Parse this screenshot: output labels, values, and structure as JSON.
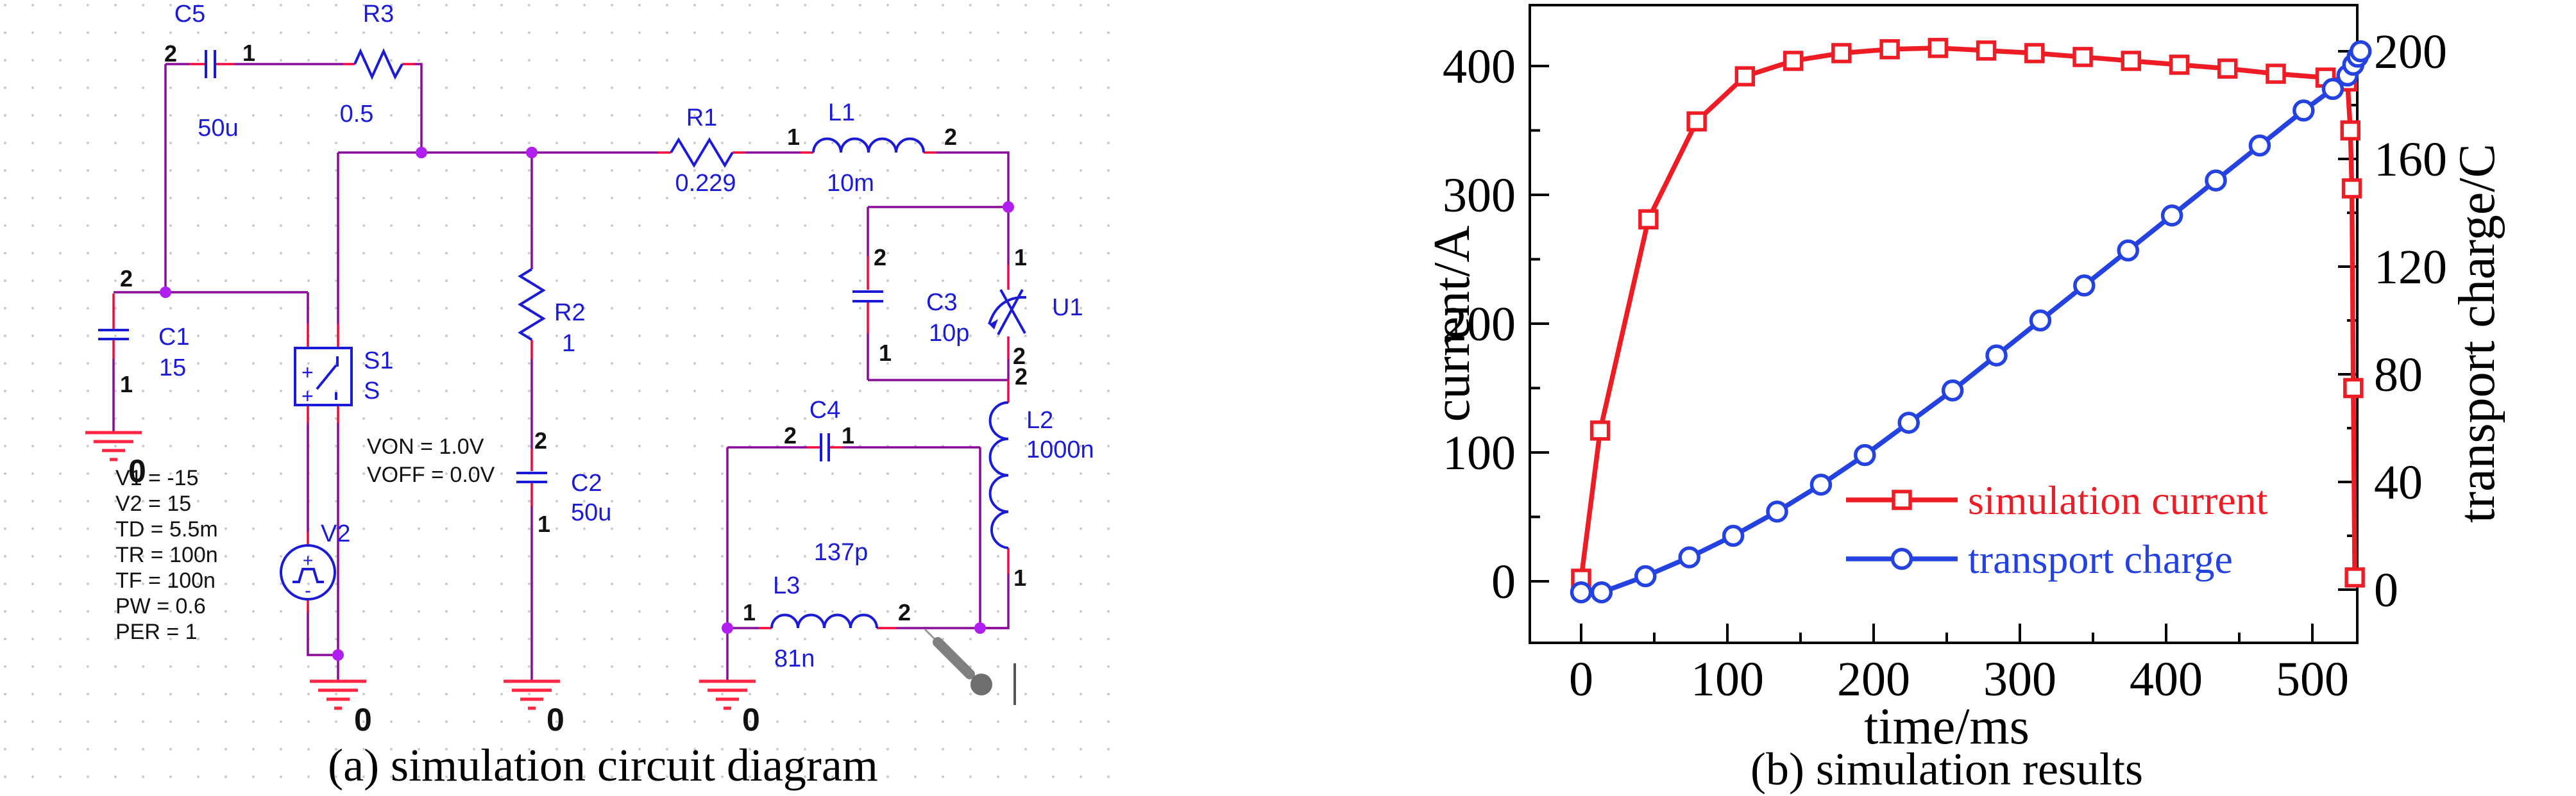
{
  "figure": {
    "caption_a": "(a) simulation circuit diagram",
    "caption_b": "(b) simulation results"
  },
  "circuit": {
    "components": {
      "c5": {
        "name": "C5",
        "value": "50u",
        "pin_left": "2",
        "pin_right": "1"
      },
      "r3": {
        "name": "R3",
        "value": "0.5"
      },
      "c1": {
        "name": "C1",
        "value": "15",
        "pin_top": "2",
        "pin_bottom": "1"
      },
      "s1": {
        "name": "S1",
        "model": "S",
        "von": "VON = 1.0V",
        "voff": "VOFF = 0.0V"
      },
      "v2": {
        "name": "V2",
        "plus": "+",
        "minus": "-",
        "params": [
          "V1 = -15",
          "V2 = 15",
          "TD = 5.5m",
          "TR = 100n",
          "TF = 100n",
          "PW = 0.6",
          "PER = 1"
        ]
      },
      "r2": {
        "name": "R2",
        "value": "1"
      },
      "c2": {
        "name": "C2",
        "value": "50u",
        "pin_top": "2",
        "pin_bottom": "1"
      },
      "r1": {
        "name": "R1",
        "value": "0.229"
      },
      "l1": {
        "name": "L1",
        "value": "10m",
        "pin_left": "1",
        "pin_right": "2"
      },
      "c3": {
        "name": "C3",
        "value": "10p",
        "pin_top": "2",
        "pin_bottom": "1"
      },
      "u1": {
        "name": "U1",
        "pin_top": "1",
        "pin_bottom": "2"
      },
      "l2": {
        "name": "L2",
        "value": "1000n",
        "pin_top": "2",
        "pin_bottom": "1"
      },
      "c4": {
        "name": "C4",
        "value": "137p",
        "pin_left": "2",
        "pin_right": "1"
      },
      "l3": {
        "name": "L3",
        "value": "81n",
        "pin_left": "1",
        "pin_right": "2"
      }
    },
    "grounds": [
      "0",
      "0",
      "0",
      "0"
    ]
  },
  "chart_data": {
    "type": "line",
    "xlabel": "time/ms",
    "ylabel_left": "current/A",
    "ylabel_right": "transport charge/C",
    "x_ticks": [
      0,
      100,
      200,
      300,
      400,
      500
    ],
    "left_ticks": [
      0,
      100,
      200,
      300,
      400
    ],
    "right_ticks": [
      0,
      40,
      80,
      120,
      160,
      200
    ],
    "xlim": [
      -35,
      531
    ],
    "ylim_left": [
      -48,
      445
    ],
    "ylim_right": [
      -20,
      217
    ],
    "grid": false,
    "legend_position": "inside-lower-middle",
    "series": [
      {
        "name": "simulation current",
        "color": "#ee1c25",
        "marker": "square",
        "axis": "left",
        "points": [
          [
            0,
            2
          ],
          [
            13,
            117
          ],
          [
            46,
            281
          ],
          [
            79,
            357
          ],
          [
            112,
            392
          ],
          [
            145,
            404
          ],
          [
            178,
            410
          ],
          [
            211,
            413
          ],
          [
            244,
            414
          ],
          [
            277,
            412
          ],
          [
            310,
            410
          ],
          [
            343,
            407
          ],
          [
            376,
            404
          ],
          [
            409,
            401
          ],
          [
            442,
            398
          ],
          [
            475,
            394
          ],
          [
            509,
            391
          ],
          [
            524,
            388
          ],
          [
            526,
            350
          ],
          [
            527,
            305
          ],
          [
            528,
            150
          ],
          [
            529,
            3
          ]
        ]
      },
      {
        "name": "transport charge",
        "color": "#2442e0",
        "marker": "circle",
        "axis": "right",
        "points": [
          [
            0,
            -1
          ],
          [
            14,
            -1
          ],
          [
            44,
            5
          ],
          [
            74,
            12
          ],
          [
            104,
            20
          ],
          [
            134,
            29
          ],
          [
            164,
            39
          ],
          [
            194,
            50
          ],
          [
            224,
            62
          ],
          [
            254,
            74
          ],
          [
            284,
            87
          ],
          [
            314,
            100
          ],
          [
            344,
            113
          ],
          [
            374,
            126
          ],
          [
            404,
            139
          ],
          [
            434,
            152
          ],
          [
            464,
            165
          ],
          [
            494,
            178
          ],
          [
            514,
            186
          ],
          [
            524,
            191
          ],
          [
            528,
            195
          ],
          [
            531,
            198
          ],
          [
            533,
            200
          ]
        ]
      }
    ]
  }
}
